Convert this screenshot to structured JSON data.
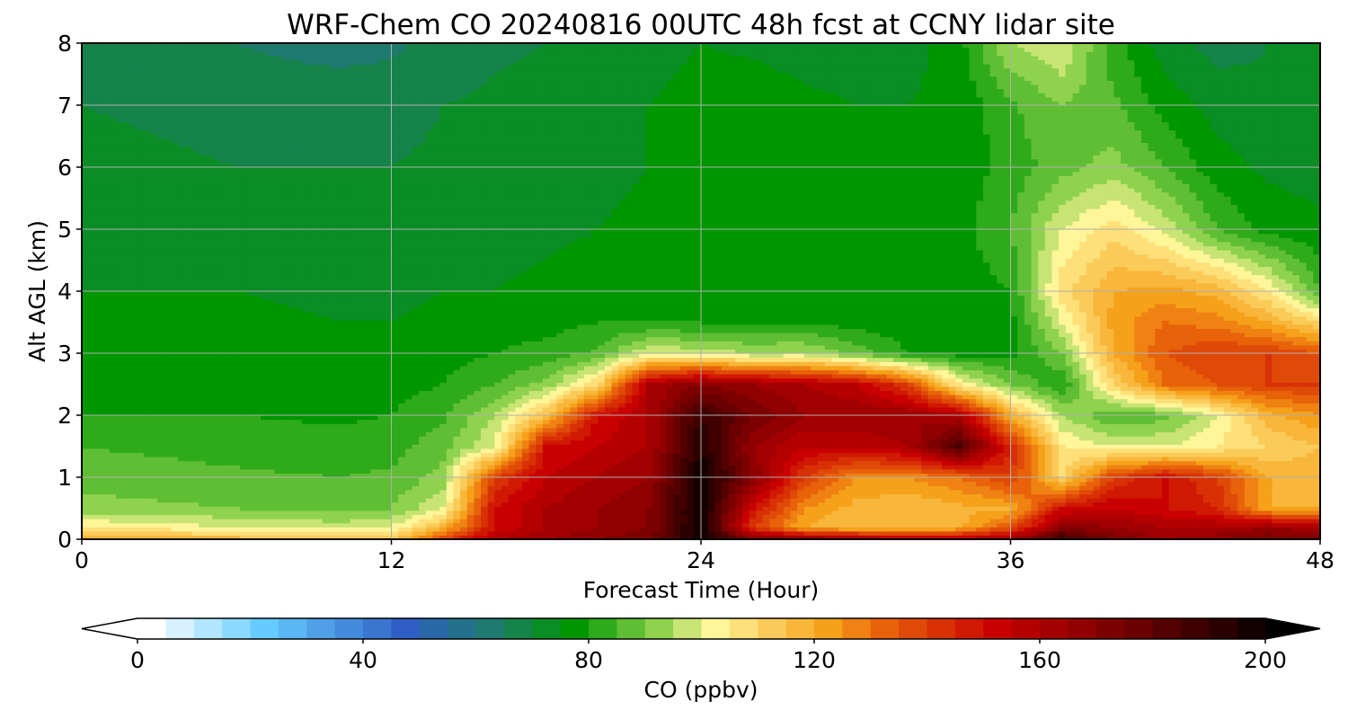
{
  "chart_data": {
    "type": "heatmap",
    "title": "WRF-Chem CO  20240816 00UTC 48h fcst at CCNY lidar site",
    "xlabel": "Forecast Time (Hour)",
    "ylabel": "Alt AGL (km)",
    "xlim": [
      0,
      48
    ],
    "ylim": [
      0,
      8
    ],
    "x_ticks": [
      0,
      12,
      24,
      36,
      48
    ],
    "y_ticks": [
      0,
      1,
      2,
      3,
      4,
      5,
      6,
      7,
      8
    ],
    "grid": true,
    "colorbar": {
      "label": "CO  (ppbv)",
      "vmin": 0,
      "vmax": 200,
      "ticks": [
        0,
        40,
        80,
        120,
        160,
        200
      ],
      "extend": "both",
      "colors": [
        {
          "value": 0,
          "color": "#ffffff"
        },
        {
          "value": 20,
          "color": "#66ccff"
        },
        {
          "value": 45,
          "color": "#2f5fc4"
        },
        {
          "value": 60,
          "color": "#1f7a6f"
        },
        {
          "value": 75,
          "color": "#009600"
        },
        {
          "value": 90,
          "color": "#8ed24e"
        },
        {
          "value": 100,
          "color": "#fff599"
        },
        {
          "value": 120,
          "color": "#f6a11a"
        },
        {
          "value": 130,
          "color": "#e8620a"
        },
        {
          "value": 150,
          "color": "#c80000"
        },
        {
          "value": 175,
          "color": "#6a0000"
        },
        {
          "value": 200,
          "color": "#000000"
        }
      ]
    },
    "x_hours": [
      0,
      6,
      10,
      12,
      14,
      16,
      18,
      20,
      22,
      24,
      26,
      28,
      30,
      32,
      34,
      36,
      38,
      40,
      42,
      44,
      46,
      48
    ],
    "z_km": [
      0,
      0.2,
      0.5,
      1,
      1.5,
      2,
      2.5,
      3,
      3.5,
      4,
      5,
      6,
      7,
      8
    ],
    "co_ppbv": [
      [
        120,
        118,
        115,
        112,
        140,
        160,
        165,
        170,
        175,
        200,
        175,
        170,
        165,
        160,
        160,
        165,
        190,
        175,
        165,
        170,
        175,
        175
      ],
      [
        105,
        100,
        98,
        100,
        118,
        150,
        160,
        165,
        170,
        200,
        140,
        120,
        115,
        115,
        118,
        135,
        170,
        165,
        160,
        160,
        165,
        160
      ],
      [
        92,
        90,
        88,
        90,
        100,
        150,
        160,
        165,
        170,
        200,
        150,
        125,
        118,
        115,
        118,
        120,
        150,
        155,
        150,
        145,
        120,
        120
      ],
      [
        88,
        86,
        85,
        86,
        92,
        140,
        155,
        160,
        165,
        200,
        170,
        140,
        125,
        125,
        130,
        140,
        110,
        140,
        150,
        140,
        120,
        118
      ],
      [
        85,
        83,
        82,
        83,
        88,
        100,
        150,
        155,
        160,
        195,
        165,
        155,
        155,
        160,
        185,
        145,
        105,
        100,
        100,
        105,
        110,
        115
      ],
      [
        80,
        80,
        79,
        80,
        84,
        95,
        115,
        150,
        160,
        190,
        175,
        165,
        165,
        165,
        160,
        120,
        95,
        85,
        88,
        100,
        118,
        125
      ],
      [
        78,
        78,
        77,
        78,
        80,
        85,
        92,
        110,
        160,
        170,
        165,
        160,
        155,
        140,
        105,
        90,
        80,
        110,
        130,
        135,
        140,
        140
      ],
      [
        77,
        77,
        76,
        77,
        78,
        80,
        82,
        86,
        100,
        98,
        95,
        96,
        88,
        80,
        78,
        78,
        90,
        120,
        135,
        140,
        140,
        135
      ],
      [
        76,
        76,
        75,
        75,
        76,
        77,
        78,
        80,
        80,
        80,
        79,
        79,
        78,
        77,
        77,
        78,
        100,
        122,
        130,
        128,
        120,
        110
      ],
      [
        75,
        75,
        74,
        74,
        75,
        75,
        76,
        77,
        77,
        77,
        77,
        77,
        77,
        76,
        77,
        80,
        108,
        120,
        122,
        118,
        105,
        85
      ],
      [
        73,
        72,
        72,
        72,
        72,
        73,
        74,
        75,
        76,
        77,
        77,
        77,
        77,
        77,
        78,
        85,
        100,
        108,
        98,
        85,
        78,
        76
      ],
      [
        72,
        70,
        70,
        70,
        71,
        72,
        73,
        74,
        75,
        78,
        78,
        77,
        76,
        76,
        77,
        82,
        88,
        92,
        85,
        77,
        74,
        73
      ],
      [
        70,
        68,
        68,
        68,
        70,
        71,
        72,
        73,
        75,
        77,
        78,
        76,
        75,
        75,
        76,
        84,
        90,
        86,
        78,
        73,
        71,
        70
      ],
      [
        68,
        65,
        63,
        64,
        67,
        69,
        70,
        72,
        73,
        75,
        74,
        73,
        73,
        73,
        78,
        95,
        100,
        82,
        72,
        68,
        70,
        70
      ]
    ]
  }
}
